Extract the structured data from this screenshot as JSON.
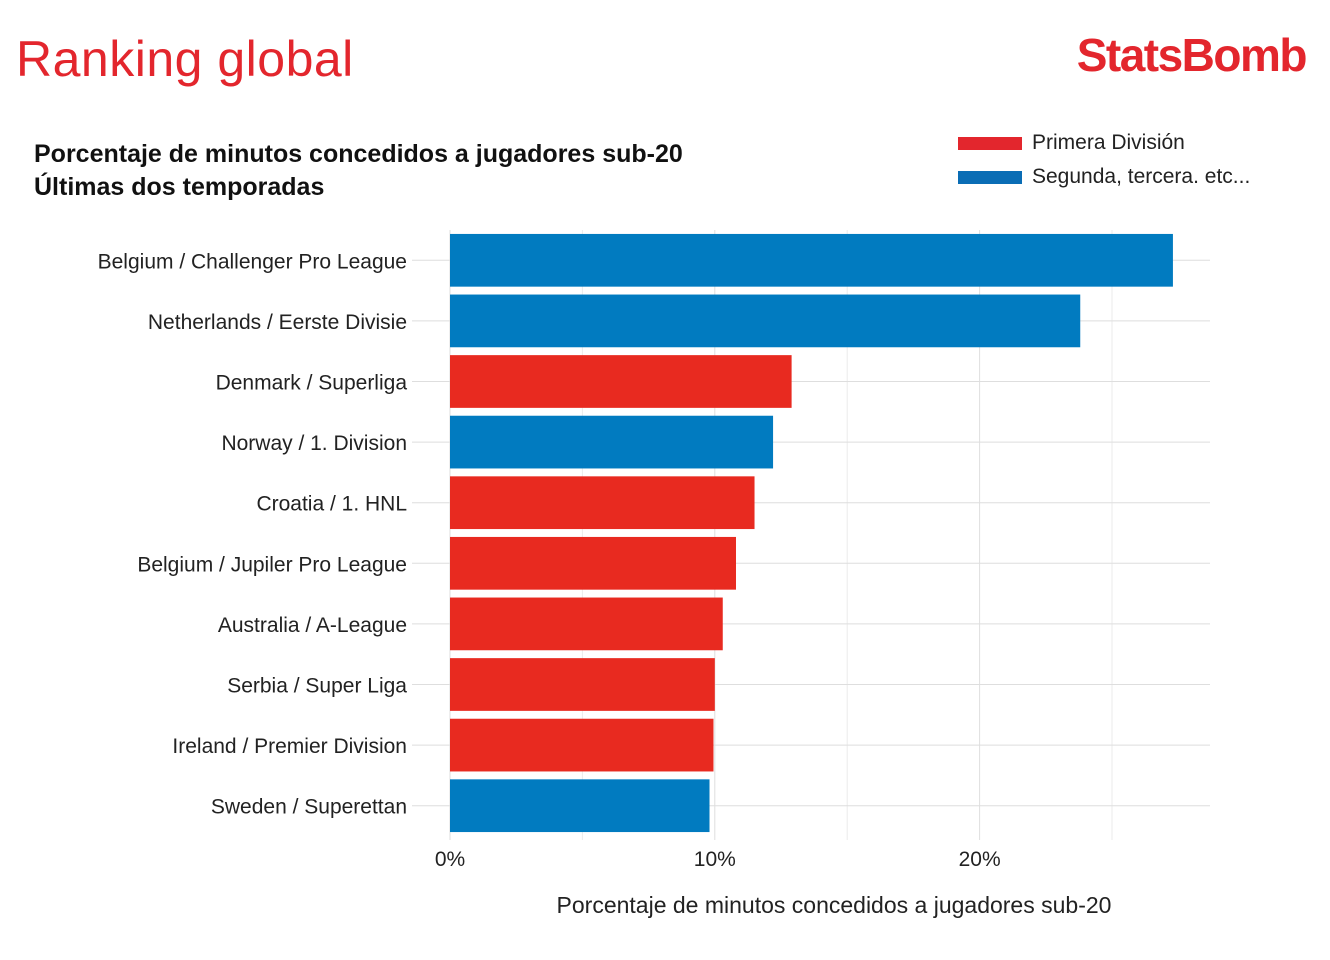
{
  "header": {
    "title": "Ranking global",
    "brand": "StatsBomb"
  },
  "chart_data": {
    "type": "bar",
    "orientation": "horizontal",
    "title_line1": "Porcentaje de minutos concedidos a jugadores sub-20",
    "title_line2": "Últimas dos temporadas",
    "xlabel": "Porcentaje de minutos concedidos a jugadores sub-20",
    "ylabel": "",
    "xlim": [
      0,
      28.7
    ],
    "xticks": [
      {
        "value": 0,
        "label": "0%"
      },
      {
        "value": 10,
        "label": "10%"
      },
      {
        "value": 20,
        "label": "20%"
      }
    ],
    "minor_gridlines": [
      5,
      15,
      25
    ],
    "grid": true,
    "legend_position": "top-right",
    "legend": [
      {
        "key": "primera",
        "label": "Primera División",
        "color": "#e3262d"
      },
      {
        "key": "segunda",
        "label": "Segunda, tercera. etc...",
        "color": "#0a6db5"
      }
    ],
    "colors": {
      "primera": "#e82a20",
      "segunda": "#017bc0"
    },
    "categories": [
      "Belgium / Challenger Pro League",
      "Netherlands / Eerste Divisie",
      "Denmark / Superliga",
      "Norway / 1. Division",
      "Croatia / 1. HNL",
      "Belgium / Jupiler Pro League",
      "Australia / A-League",
      "Serbia / Super Liga",
      "Ireland / Premier Division",
      "Sweden / Superettan"
    ],
    "values": [
      27.3,
      23.8,
      12.9,
      12.2,
      11.5,
      10.8,
      10.3,
      10.0,
      9.95,
      9.8
    ],
    "groups": [
      "segunda",
      "segunda",
      "primera",
      "segunda",
      "primera",
      "primera",
      "primera",
      "primera",
      "primera",
      "segunda"
    ]
  }
}
